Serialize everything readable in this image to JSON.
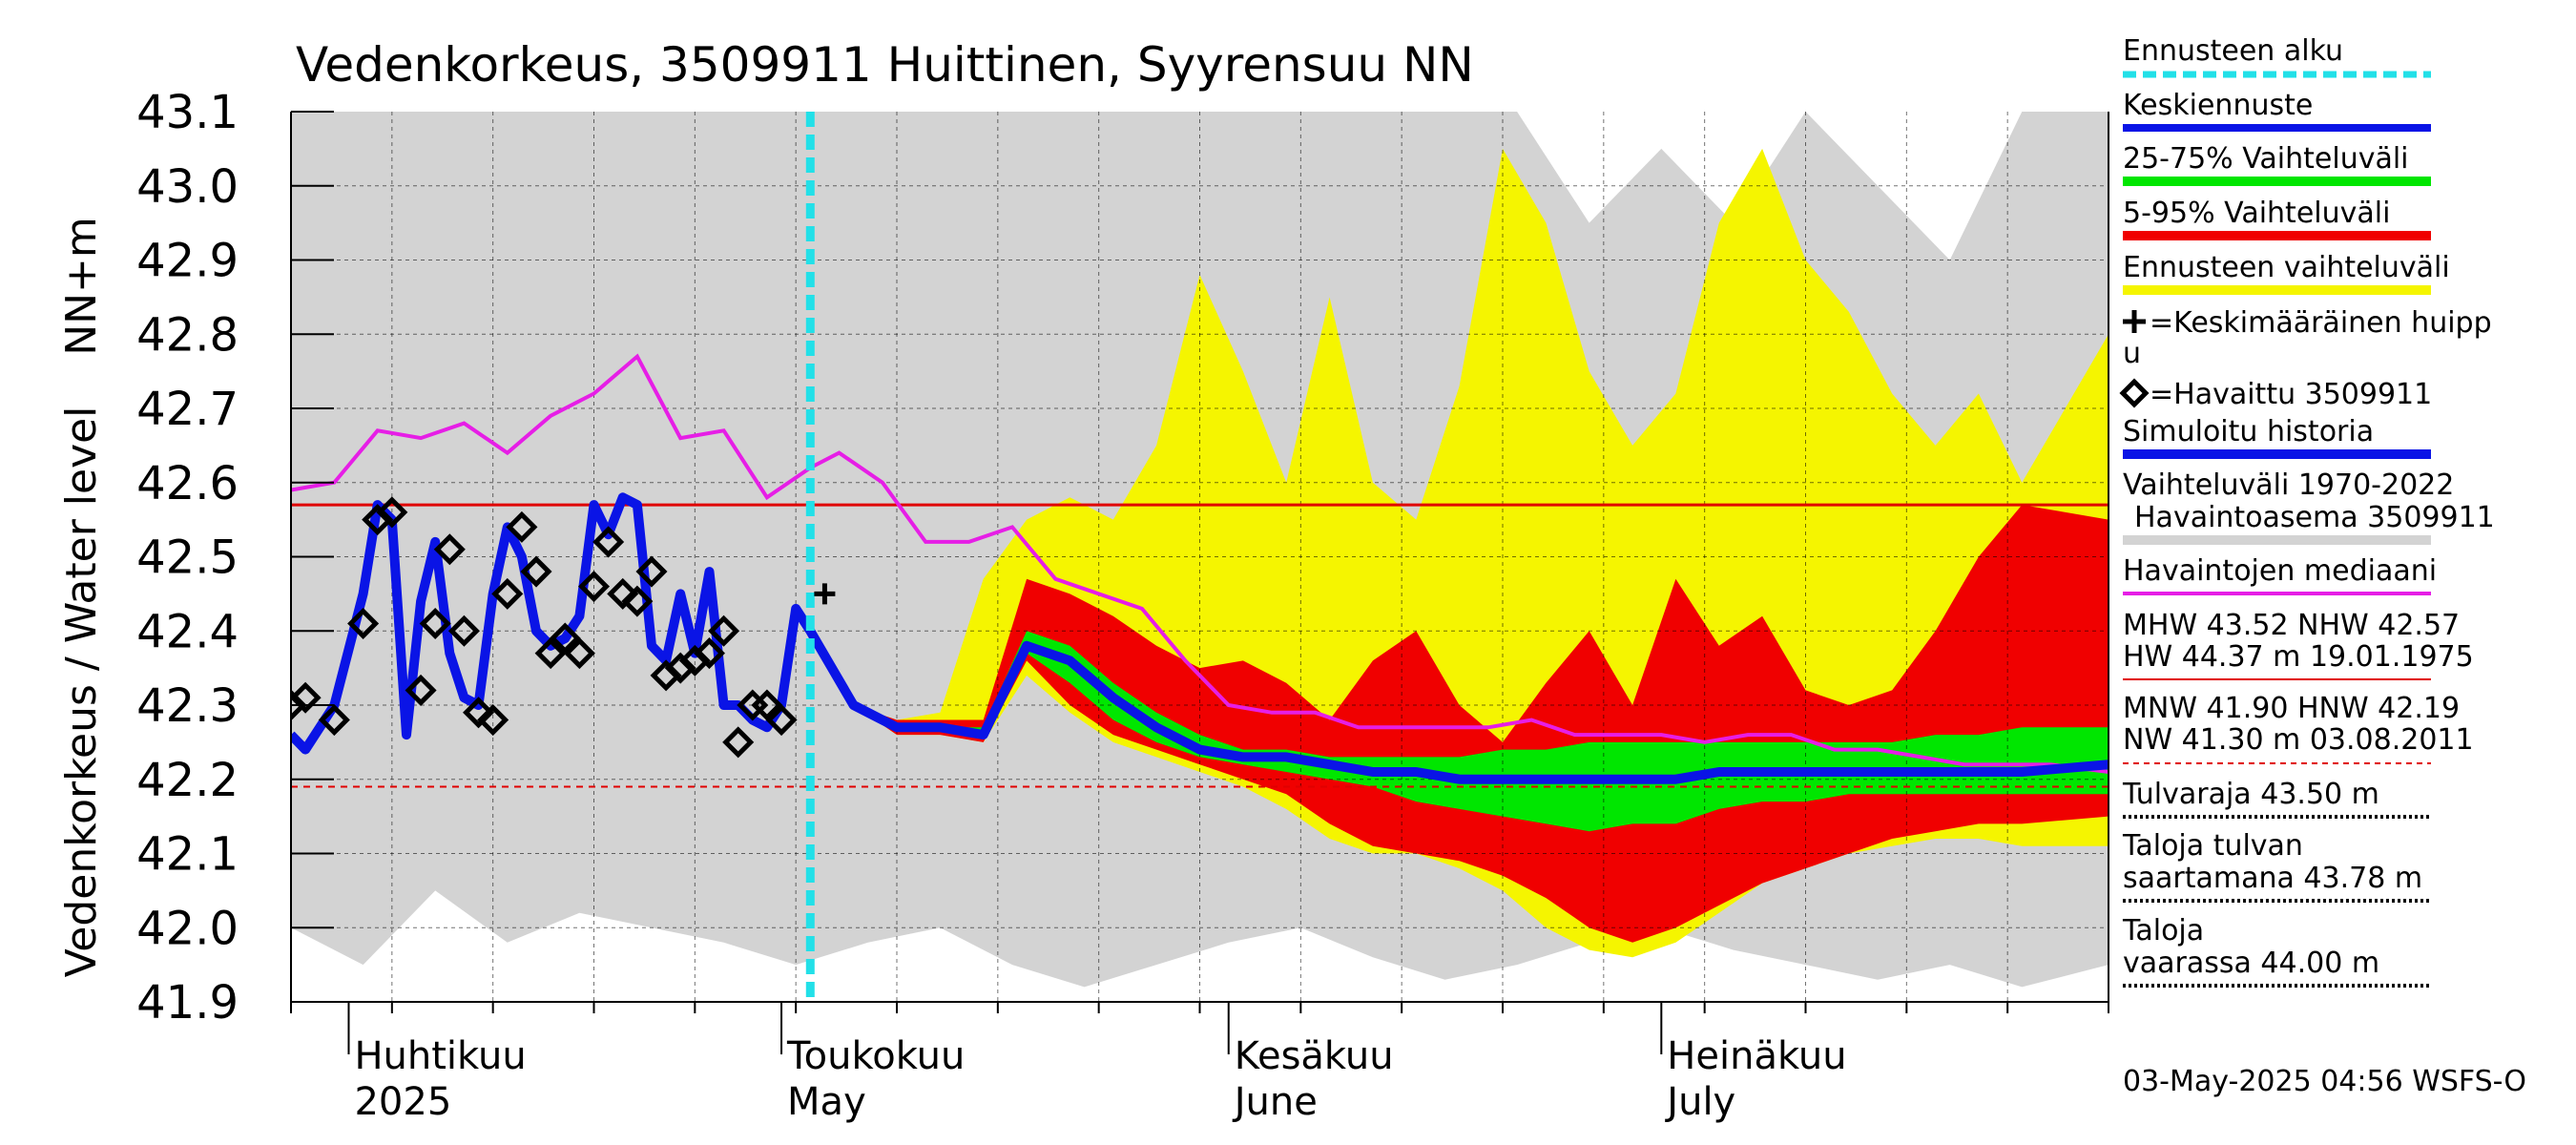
{
  "chart_data": {
    "type": "area",
    "title": "Vedenkorkeus, 3509911 Huittinen, Syyrensuu NN",
    "ylabel_lines": [
      "NN+m",
      "Vedenkorkeus / Water level"
    ],
    "ylim": [
      41.9,
      43.1
    ],
    "y_ticks": [
      41.9,
      42.0,
      42.1,
      42.2,
      42.3,
      42.4,
      42.5,
      42.6,
      42.7,
      42.8,
      42.9,
      43.0,
      43.1
    ],
    "y_tick_labels": [
      "41.9",
      "42.0",
      "42.1",
      "42.2",
      "42.3",
      "42.4",
      "42.5",
      "42.6",
      "42.7",
      "42.8",
      "42.9",
      "43.0",
      "43.1"
    ],
    "x_range": [
      "2025-03-28",
      "2025-08-01"
    ],
    "month_labels": [
      {
        "date": "2025-04-01",
        "fi": "Huhtikuu",
        "en": "2025"
      },
      {
        "date": "2025-05-01",
        "fi": "Toukokuu",
        "en": "May"
      },
      {
        "date": "2025-06-01",
        "fi": "Kesäkuu",
        "en": "June"
      },
      {
        "date": "2025-07-01",
        "fi": "Heinäkuu",
        "en": "July"
      }
    ],
    "forecast_start": "2025-05-03",
    "reference_lines": {
      "NHW": 42.57,
      "HNW": 42.19
    },
    "mean_peak": {
      "date": "2025-05-04",
      "value": 42.45
    },
    "historical_band": {
      "dates": [
        "2025-03-28",
        "2025-04-02",
        "2025-04-07",
        "2025-04-12",
        "2025-04-17",
        "2025-04-22",
        "2025-04-27",
        "2025-05-02",
        "2025-05-07",
        "2025-05-12",
        "2025-05-17",
        "2025-05-22",
        "2025-05-27",
        "2025-06-01",
        "2025-06-06",
        "2025-06-11",
        "2025-06-16",
        "2025-06-21",
        "2025-06-26",
        "2025-07-01",
        "2025-07-06",
        "2025-07-11",
        "2025-07-16",
        "2025-07-21",
        "2025-07-26",
        "2025-08-01"
      ],
      "low": [
        42.0,
        41.95,
        42.05,
        41.98,
        42.02,
        42.0,
        41.98,
        41.95,
        41.98,
        42.0,
        41.95,
        41.92,
        41.95,
        41.98,
        42.0,
        41.96,
        41.93,
        41.95,
        41.98,
        42.0,
        41.97,
        41.95,
        41.93,
        41.95,
        41.92,
        41.95
      ],
      "high": [
        43.1,
        43.1,
        43.1,
        43.1,
        43.1,
        43.1,
        43.1,
        43.1,
        43.1,
        43.1,
        43.1,
        43.1,
        43.1,
        43.1,
        43.1,
        43.1,
        43.1,
        43.1,
        42.95,
        43.05,
        42.95,
        43.1,
        43.0,
        42.9,
        43.1,
        43.1
      ]
    },
    "median": {
      "dates": [
        "2025-03-28",
        "2025-03-31",
        "2025-04-03",
        "2025-04-06",
        "2025-04-09",
        "2025-04-12",
        "2025-04-15",
        "2025-04-18",
        "2025-04-21",
        "2025-04-24",
        "2025-04-27",
        "2025-04-30",
        "2025-05-03",
        "2025-05-05",
        "2025-05-08",
        "2025-05-11",
        "2025-05-14",
        "2025-05-17",
        "2025-05-20",
        "2025-05-23",
        "2025-05-26",
        "2025-05-29",
        "2025-06-01",
        "2025-06-04",
        "2025-06-07",
        "2025-06-10",
        "2025-06-13",
        "2025-06-16",
        "2025-06-19",
        "2025-06-22",
        "2025-06-25",
        "2025-06-28",
        "2025-07-01",
        "2025-07-04",
        "2025-07-07",
        "2025-07-10",
        "2025-07-13",
        "2025-07-16",
        "2025-07-19",
        "2025-07-22",
        "2025-07-25",
        "2025-07-28",
        "2025-08-01"
      ],
      "values": [
        42.59,
        42.6,
        42.67,
        42.66,
        42.68,
        42.64,
        42.69,
        42.72,
        42.77,
        42.66,
        42.67,
        42.58,
        42.62,
        42.64,
        42.6,
        42.52,
        42.52,
        42.54,
        42.47,
        42.45,
        42.43,
        42.36,
        42.3,
        42.29,
        42.29,
        42.27,
        42.27,
        42.27,
        42.27,
        42.28,
        42.26,
        42.26,
        42.26,
        42.25,
        42.26,
        42.26,
        42.24,
        42.24,
        42.23,
        42.22,
        42.22,
        42.22,
        42.21
      ]
    },
    "observed": {
      "dates": [
        "2025-03-28",
        "2025-03-29",
        "2025-03-31",
        "2025-04-02",
        "2025-04-03",
        "2025-04-04",
        "2025-04-06",
        "2025-04-07",
        "2025-04-08",
        "2025-04-09",
        "2025-04-10",
        "2025-04-11",
        "2025-04-12",
        "2025-04-13",
        "2025-04-14",
        "2025-04-15",
        "2025-04-16",
        "2025-04-17",
        "2025-04-18",
        "2025-04-19",
        "2025-04-20",
        "2025-04-21",
        "2025-04-22",
        "2025-04-23",
        "2025-04-24",
        "2025-04-25",
        "2025-04-26",
        "2025-04-27",
        "2025-04-28",
        "2025-04-29",
        "2025-04-30",
        "2025-05-01"
      ],
      "values": [
        42.3,
        42.31,
        42.28,
        42.41,
        42.55,
        42.56,
        42.32,
        42.41,
        42.51,
        42.4,
        42.29,
        42.28,
        42.45,
        42.54,
        42.48,
        42.37,
        42.39,
        42.37,
        42.46,
        42.52,
        42.45,
        42.44,
        42.48,
        42.34,
        42.35,
        42.36,
        42.37,
        42.4,
        42.25,
        42.3,
        42.3,
        42.28
      ]
    },
    "simulated": {
      "dates": [
        "2025-03-28",
        "2025-03-29",
        "2025-03-31",
        "2025-04-02",
        "2025-04-03",
        "2025-04-04",
        "2025-04-05",
        "2025-04-06",
        "2025-04-07",
        "2025-04-08",
        "2025-04-09",
        "2025-04-10",
        "2025-04-11",
        "2025-04-12",
        "2025-04-13",
        "2025-04-14",
        "2025-04-15",
        "2025-04-16",
        "2025-04-17",
        "2025-04-18",
        "2025-04-19",
        "2025-04-20",
        "2025-04-21",
        "2025-04-22",
        "2025-04-23",
        "2025-04-24",
        "2025-04-25",
        "2025-04-26",
        "2025-04-27",
        "2025-04-28",
        "2025-04-29",
        "2025-04-30",
        "2025-05-01",
        "2025-05-02",
        "2025-05-03"
      ],
      "values": [
        42.26,
        42.24,
        42.3,
        42.45,
        42.57,
        42.55,
        42.26,
        42.44,
        42.52,
        42.37,
        42.31,
        42.3,
        42.45,
        42.54,
        42.5,
        42.4,
        42.38,
        42.39,
        42.42,
        42.57,
        42.53,
        42.58,
        42.57,
        42.38,
        42.36,
        42.45,
        42.37,
        42.48,
        42.3,
        42.3,
        42.28,
        42.27,
        42.3,
        42.43,
        42.4
      ]
    },
    "forecast": {
      "dates": [
        "2025-05-03",
        "2025-05-06",
        "2025-05-09",
        "2025-05-12",
        "2025-05-15",
        "2025-05-18",
        "2025-05-21",
        "2025-05-24",
        "2025-05-27",
        "2025-05-30",
        "2025-06-02",
        "2025-06-05",
        "2025-06-08",
        "2025-06-11",
        "2025-06-14",
        "2025-06-17",
        "2025-06-20",
        "2025-06-23",
        "2025-06-26",
        "2025-06-29",
        "2025-07-02",
        "2025-07-05",
        "2025-07-08",
        "2025-07-11",
        "2025-07-14",
        "2025-07-17",
        "2025-07-20",
        "2025-07-23",
        "2025-07-26",
        "2025-08-01"
      ],
      "mean": [
        42.4,
        42.3,
        42.27,
        42.27,
        42.26,
        42.38,
        42.36,
        42.31,
        42.27,
        42.24,
        42.23,
        42.23,
        42.22,
        42.21,
        42.21,
        42.2,
        42.2,
        42.2,
        42.2,
        42.2,
        42.2,
        42.21,
        42.21,
        42.21,
        42.21,
        42.21,
        42.21,
        42.21,
        42.21,
        42.22
      ],
      "p25": [
        42.4,
        42.3,
        42.27,
        42.27,
        42.26,
        42.37,
        42.33,
        42.28,
        42.25,
        42.23,
        42.22,
        42.21,
        42.2,
        42.19,
        42.17,
        42.16,
        42.15,
        42.14,
        42.13,
        42.14,
        42.14,
        42.16,
        42.17,
        42.17,
        42.18,
        42.18,
        42.18,
        42.18,
        42.18,
        42.18
      ],
      "p75": [
        42.4,
        42.3,
        42.27,
        42.27,
        42.27,
        42.4,
        42.38,
        42.33,
        42.29,
        42.26,
        42.24,
        42.24,
        42.23,
        42.23,
        42.23,
        42.23,
        42.24,
        42.24,
        42.25,
        42.25,
        42.25,
        42.25,
        42.25,
        42.25,
        42.25,
        42.25,
        42.26,
        42.26,
        42.27,
        42.27
      ],
      "p5": [
        42.4,
        42.3,
        42.26,
        42.26,
        42.25,
        42.36,
        42.3,
        42.26,
        42.24,
        42.22,
        42.2,
        42.18,
        42.14,
        42.11,
        42.1,
        42.09,
        42.07,
        42.04,
        42.0,
        41.98,
        42.0,
        42.03,
        42.06,
        42.08,
        42.1,
        42.12,
        42.13,
        42.14,
        42.14,
        42.15
      ],
      "p95": [
        42.4,
        42.3,
        42.28,
        42.28,
        42.28,
        42.47,
        42.45,
        42.42,
        42.38,
        42.35,
        42.36,
        42.33,
        42.28,
        42.36,
        42.4,
        42.3,
        42.25,
        42.33,
        42.4,
        42.3,
        42.47,
        42.38,
        42.42,
        42.32,
        42.3,
        42.32,
        42.4,
        42.5,
        42.57,
        42.55
      ],
      "min": [
        42.4,
        42.3,
        42.26,
        42.26,
        42.25,
        42.34,
        42.29,
        42.25,
        42.23,
        42.21,
        42.19,
        42.16,
        42.12,
        42.1,
        42.1,
        42.08,
        42.05,
        42.0,
        41.97,
        41.96,
        41.98,
        42.02,
        42.06,
        42.08,
        42.1,
        42.11,
        42.12,
        42.12,
        42.11,
        42.11
      ],
      "max": [
        42.4,
        42.3,
        42.28,
        42.29,
        42.47,
        42.55,
        42.58,
        42.55,
        42.65,
        42.88,
        42.75,
        42.6,
        42.85,
        42.6,
        42.55,
        42.73,
        43.05,
        42.95,
        42.75,
        42.65,
        42.72,
        42.95,
        43.05,
        42.9,
        42.83,
        42.72,
        42.65,
        42.72,
        42.6,
        42.8
      ]
    }
  },
  "legend": {
    "forecast_start": "Ennusteen alku",
    "mean_forecast": "Keskiennuste",
    "range_25_75": "25-75% Vaihteluväli",
    "range_5_95": "5-95% Vaihteluväli",
    "forecast_range": "Ennusteen vaihteluväli",
    "mean_peak_1": "=Keskimääräinen huipp",
    "mean_peak_2": "u",
    "observed": "=Havaittu 3509911",
    "simulated": "Simuloitu historia",
    "range_history_1": "Vaihteluväli 1970-2022",
    "range_history_2": "Havaintoasema 3509911",
    "median": "Havaintojen mediaani",
    "stats_1a": "MHW  43.52 NHW  42.57",
    "stats_1b": "HW  44.37 m 19.01.1975",
    "stats_2a": "MNW  41.90 HNW  42.19",
    "stats_2b": "NW  41.30 m 03.08.2011",
    "flood_1": "Tulvaraja 43.50 m",
    "flood_2a": "Taloja tulvan",
    "flood_2b": "saartamana 43.78 m",
    "flood_3a": "Taloja",
    "flood_3b": "vaarassa 44.00 m"
  },
  "colors": {
    "forecast_start": "#22e0e8",
    "mean_forecast": "#0a14e6",
    "range_25_75": "#00e600",
    "range_5_95": "#f00000",
    "forecast_range": "#f5f500",
    "history_band": "#d3d3d3",
    "median": "#e61ee6",
    "reference_line": "#e00000"
  },
  "footer": "03-May-2025 04:56 WSFS-O"
}
